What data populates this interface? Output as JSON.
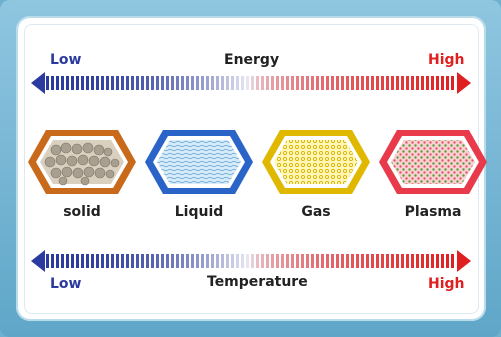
{
  "energy_scale": {
    "label": "Energy",
    "low_label": "Low",
    "high_label": "High"
  },
  "temperature_scale": {
    "label": "Temperature",
    "low_label": "Low",
    "high_label": "High"
  },
  "states": [
    {
      "label": "solid",
      "border_color": "#c96a1a",
      "fill_color": "#d6cdbd"
    },
    {
      "label": "Liquid",
      "border_color": "#2a64c8",
      "fill_color": "#cfe6f6"
    },
    {
      "label": "Gas",
      "border_color": "#e0b800",
      "fill_color": "#fff4b0"
    },
    {
      "label": "Plasma",
      "border_color": "#e83a4a",
      "fill_color": "#f7c6c6"
    }
  ],
  "colors": {
    "low": "#2b3a9e",
    "high": "#e02020",
    "frame": "#6fb0cf"
  }
}
